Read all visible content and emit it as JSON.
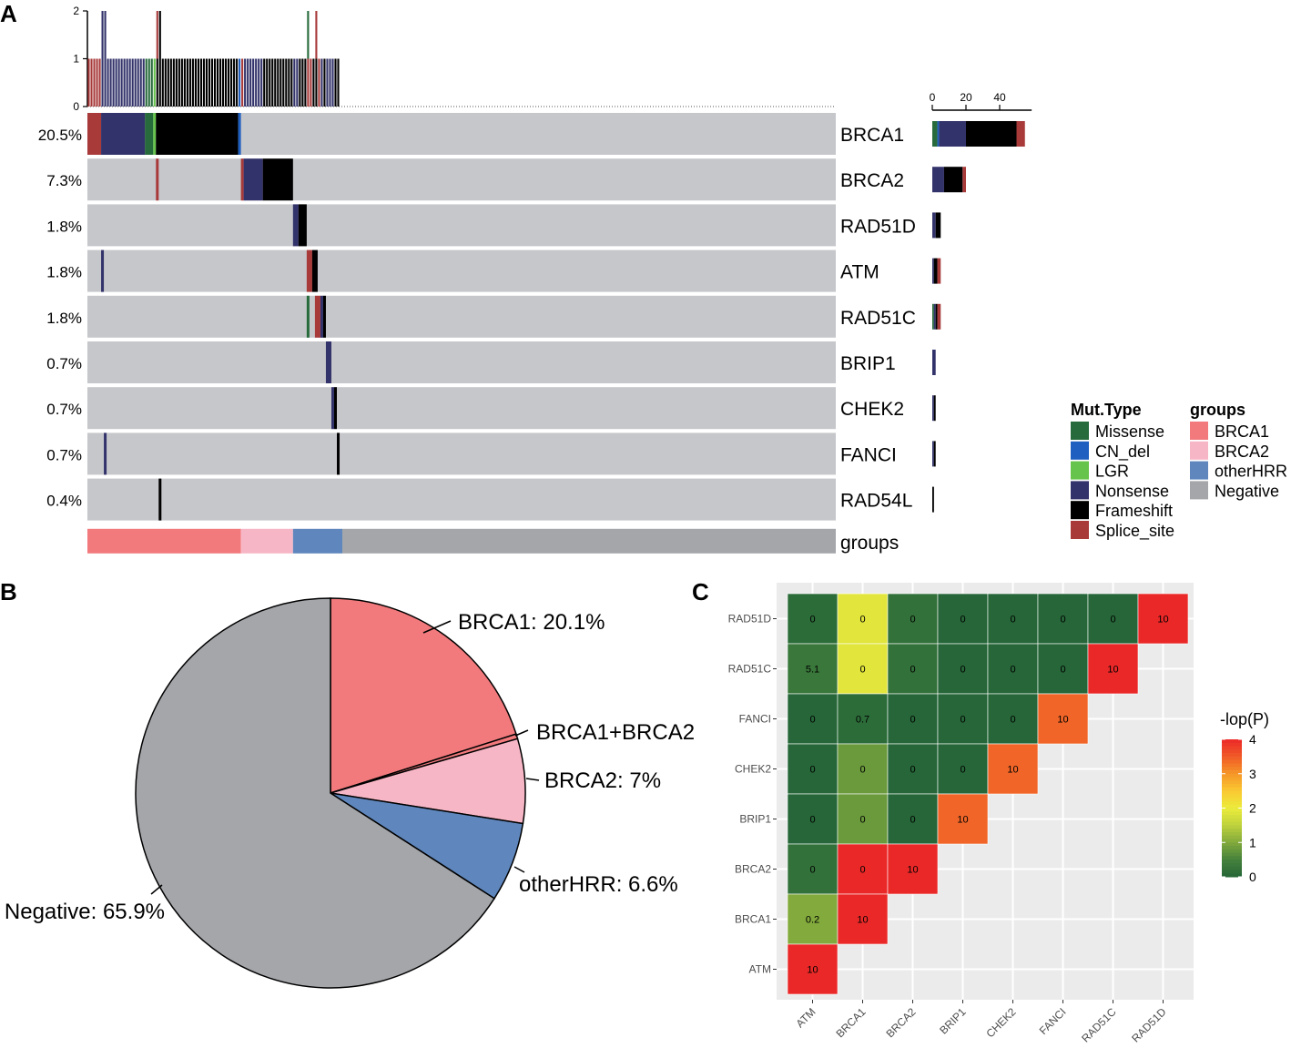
{
  "panels": {
    "a": "A",
    "b": "B",
    "c": "C"
  },
  "colors": {
    "Missense": "#276b3c",
    "CN_del": "#1f5fbf",
    "LGR": "#66c34b",
    "Nonsense": "#33336b",
    "Frameshift": "#000000",
    "Splice_site": "#a83a3a",
    "BRCA1": "#f27a7d",
    "BRCA2": "#f7b6c5",
    "otherHRR": "#5f87bd",
    "Negative": "#a4a6aa",
    "tile_bg": "#c6c7cb"
  },
  "chart_data": [
    {
      "id": "oncoplot",
      "type": "bar",
      "title": "",
      "n_samples": 273,
      "top_axis": {
        "ticks": [
          "0",
          "1",
          "2"
        ],
        "ylim": [
          0,
          2
        ]
      },
      "side_axis": {
        "ticks": [
          "0",
          "20",
          "40"
        ],
        "xlim": [
          0,
          55
        ]
      },
      "genes": [
        {
          "name": "BRCA1",
          "pct": "20.5%",
          "counts": {
            "Missense": 3,
            "CN_del": 1,
            "Nonsense": 16,
            "Frameshift": 30,
            "Splice_site": 5
          }
        },
        {
          "name": "BRCA2",
          "pct": "7.3%",
          "counts": {
            "Nonsense": 7,
            "Frameshift": 11,
            "Splice_site": 2
          }
        },
        {
          "name": "RAD51D",
          "pct": "1.8%",
          "counts": {
            "Nonsense": 2,
            "Frameshift": 3
          }
        },
        {
          "name": "ATM",
          "pct": "1.8%",
          "counts": {
            "Nonsense": 1,
            "Frameshift": 2,
            "Splice_site": 2
          }
        },
        {
          "name": "RAD51C",
          "pct": "1.8%",
          "counts": {
            "Missense": 1,
            "Nonsense": 1,
            "Frameshift": 1,
            "Splice_site": 2
          }
        },
        {
          "name": "BRIP1",
          "pct": "0.7%",
          "counts": {
            "Nonsense": 2
          }
        },
        {
          "name": "CHEK2",
          "pct": "0.7%",
          "counts": {
            "Nonsense": 1,
            "Frameshift": 1
          }
        },
        {
          "name": "FANCI",
          "pct": "0.7%",
          "counts": {
            "Nonsense": 1,
            "Frameshift": 1
          }
        },
        {
          "name": "RAD54L",
          "pct": "0.4%",
          "counts": {
            "Frameshift": 1
          }
        }
      ],
      "groups_label": "groups",
      "group_sample_counts": {
        "BRCA1": 56,
        "BRCA2": 19,
        "otherHRR": 18,
        "Negative": 180
      },
      "legend_mut": {
        "title": "Mut.Type",
        "items": [
          "Missense",
          "CN_del",
          "LGR",
          "Nonsense",
          "Frameshift",
          "Splice_site"
        ]
      },
      "legend_groups": {
        "title": "groups",
        "items": [
          "BRCA1",
          "BRCA2",
          "otherHRR",
          "Negative"
        ]
      }
    },
    {
      "id": "pie",
      "type": "pie",
      "title": "",
      "slices": [
        {
          "name": "BRCA1",
          "value": 20.1,
          "label": "BRCA1: 20.1%",
          "color_key": "BRCA1"
        },
        {
          "name": "BRCA1+BRCA2",
          "value": 0.4,
          "label": "BRCA1+BRCA2",
          "color_key": "BRCA1"
        },
        {
          "name": "BRCA2",
          "value": 7.0,
          "label": "BRCA2: 7%",
          "color_key": "BRCA2"
        },
        {
          "name": "otherHRR",
          "value": 6.6,
          "label": "otherHRR: 6.6%",
          "color_key": "otherHRR"
        },
        {
          "name": "Negative",
          "value": 65.9,
          "label": "Negative: 65.9%",
          "color_key": "Negative"
        }
      ]
    },
    {
      "id": "heatmap",
      "type": "heatmap",
      "title": "",
      "x_labels": [
        "ATM",
        "BRCA1",
        "BRCA2",
        "BRIP1",
        "CHEK2",
        "FANCI",
        "RAD51C",
        "RAD51D"
      ],
      "y_labels": [
        "RAD51D",
        "RAD51C",
        "FANCI",
        "CHEK2",
        "BRIP1",
        "BRCA2",
        "BRCA1",
        "ATM"
      ],
      "cells": [
        {
          "x": "ATM",
          "y": "RAD51D",
          "value": 0.1,
          "label": "0"
        },
        {
          "x": "BRCA1",
          "y": "RAD51D",
          "value": 1.9,
          "label": "0"
        },
        {
          "x": "BRCA2",
          "y": "RAD51D",
          "value": 0.2,
          "label": "0"
        },
        {
          "x": "BRIP1",
          "y": "RAD51D",
          "value": 0.0,
          "label": "0"
        },
        {
          "x": "CHEK2",
          "y": "RAD51D",
          "value": 0.0,
          "label": "0"
        },
        {
          "x": "FANCI",
          "y": "RAD51D",
          "value": 0.0,
          "label": "0"
        },
        {
          "x": "RAD51C",
          "y": "RAD51D",
          "value": 0.0,
          "label": "0"
        },
        {
          "x": "RAD51D",
          "y": "RAD51D",
          "value": 4.0,
          "label": "10"
        },
        {
          "x": "ATM",
          "y": "RAD51C",
          "value": 0.3,
          "label": "5.1"
        },
        {
          "x": "BRCA1",
          "y": "RAD51C",
          "value": 1.9,
          "label": "0"
        },
        {
          "x": "BRCA2",
          "y": "RAD51C",
          "value": 0.2,
          "label": "0"
        },
        {
          "x": "BRIP1",
          "y": "RAD51C",
          "value": 0.0,
          "label": "0"
        },
        {
          "x": "CHEK2",
          "y": "RAD51C",
          "value": 0.0,
          "label": "0"
        },
        {
          "x": "FANCI",
          "y": "RAD51C",
          "value": 0.0,
          "label": "0"
        },
        {
          "x": "RAD51C",
          "y": "RAD51C",
          "value": 4.0,
          "label": "10"
        },
        {
          "x": "ATM",
          "y": "FANCI",
          "value": 0.0,
          "label": "0"
        },
        {
          "x": "BRCA1",
          "y": "FANCI",
          "value": 0.1,
          "label": "0.7"
        },
        {
          "x": "BRCA2",
          "y": "FANCI",
          "value": 0.0,
          "label": "0"
        },
        {
          "x": "BRIP1",
          "y": "FANCI",
          "value": 0.0,
          "label": "0"
        },
        {
          "x": "CHEK2",
          "y": "FANCI",
          "value": 0.0,
          "label": "0"
        },
        {
          "x": "FANCI",
          "y": "FANCI",
          "value": 3.4,
          "label": "10"
        },
        {
          "x": "ATM",
          "y": "CHEK2",
          "value": 0.0,
          "label": "0"
        },
        {
          "x": "BRCA1",
          "y": "CHEK2",
          "value": 0.8,
          "label": "0"
        },
        {
          "x": "BRCA2",
          "y": "CHEK2",
          "value": 0.0,
          "label": "0"
        },
        {
          "x": "BRIP1",
          "y": "CHEK2",
          "value": 0.0,
          "label": "0"
        },
        {
          "x": "CHEK2",
          "y": "CHEK2",
          "value": 3.4,
          "label": "10"
        },
        {
          "x": "ATM",
          "y": "BRIP1",
          "value": 0.0,
          "label": "0"
        },
        {
          "x": "BRCA1",
          "y": "BRIP1",
          "value": 0.8,
          "label": "0"
        },
        {
          "x": "BRCA2",
          "y": "BRIP1",
          "value": 0.0,
          "label": "0"
        },
        {
          "x": "BRIP1",
          "y": "BRIP1",
          "value": 3.4,
          "label": "10"
        },
        {
          "x": "ATM",
          "y": "BRCA2",
          "value": 0.2,
          "label": "0"
        },
        {
          "x": "BRCA1",
          "y": "BRCA2",
          "value": 4.0,
          "label": "0"
        },
        {
          "x": "BRCA2",
          "y": "BRCA2",
          "value": 4.0,
          "label": "10"
        },
        {
          "x": "ATM",
          "y": "BRCA1",
          "value": 1.0,
          "label": "0.2"
        },
        {
          "x": "BRCA1",
          "y": "BRCA1",
          "value": 4.0,
          "label": "10"
        },
        {
          "x": "ATM",
          "y": "ATM",
          "value": 4.0,
          "label": "10"
        }
      ],
      "legend": {
        "title": "-lop(P)",
        "ticks": [
          "0",
          "1",
          "2",
          "3",
          "4"
        ],
        "range": [
          0,
          4
        ]
      }
    }
  ]
}
